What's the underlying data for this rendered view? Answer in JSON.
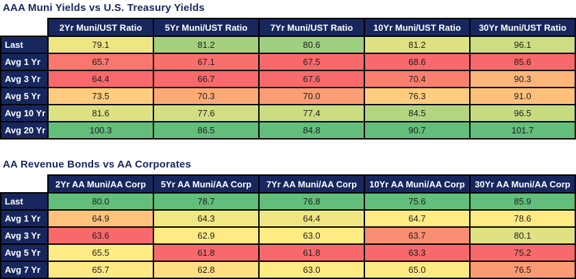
{
  "colors": {
    "page_bg": "#FFFFFF",
    "navy": "#17275E",
    "header_text": "#FFFFFF",
    "cell_text": "#1E1E1E",
    "border": "#000000",
    "title_text": "#17275E",
    "scale_min": "#F8696B",
    "scale_mid": "#FFEB84",
    "scale_max": "#63BE7B"
  },
  "chart_data": [
    {
      "type": "heatmap",
      "title": "AAA Muni Yields vs U.S. Treasury Yields",
      "columns": [
        "2Yr Muni/UST Ratio",
        "5Yr Muni/UST Ratio",
        "7Yr Muni/UST Ratio",
        "10Yr Muni/UST Ratio",
        "30Yr Muni/UST Ratio"
      ],
      "row_labels": [
        "Last",
        "Avg 1 Yr",
        "Avg 3 Yr",
        "Avg 5 Yr",
        "Avg 10 Yr",
        "Avg 20 Yr"
      ],
      "values": [
        [
          79.1,
          81.2,
          80.6,
          81.2,
          96.1
        ],
        [
          65.7,
          67.1,
          67.5,
          68.6,
          85.6
        ],
        [
          64.4,
          66.7,
          67.6,
          70.4,
          90.3
        ],
        [
          73.5,
          70.3,
          70.0,
          76.3,
          91.0
        ],
        [
          81.6,
          77.6,
          77.4,
          84.5,
          96.5
        ],
        [
          100.3,
          86.5,
          84.8,
          90.7,
          101.7
        ]
      ],
      "cell_colors": [
        [
          "#EDE683",
          "#A5D17F",
          "#9ECF7E",
          "#DFE282",
          "#CEDD81"
        ],
        [
          "#F9776E",
          "#F8706C",
          "#F8696B",
          "#F8696B",
          "#F8696B"
        ],
        [
          "#F8696B",
          "#F8696B",
          "#F86B6B",
          "#F9806F",
          "#FCB67A"
        ],
        [
          "#FDCC7E",
          "#FBAA77",
          "#FB9D75",
          "#FDCC7E",
          "#FDC17C"
        ],
        [
          "#DDE182",
          "#D2DE81",
          "#CBDC81",
          "#B4D580",
          "#C7DB81"
        ],
        [
          "#63BE7B",
          "#63BE7B",
          "#63BE7B",
          "#63BE7B",
          "#63BE7B"
        ]
      ],
      "value_format": "0.0",
      "color_scale": {
        "type": "3-color",
        "min_color": "#F8696B",
        "mid_color": "#FFEB84",
        "max_color": "#63BE7B",
        "note": "applied per column; midpoint at column median"
      },
      "legend_position": "none",
      "grid": true
    },
    {
      "type": "heatmap",
      "title": "AA Revenue Bonds vs AA Corporates",
      "columns": [
        "2Yr AA Muni/AA Corp",
        "5Yr AA Muni/AA Corp",
        "7Yr AA Muni/AA Corp",
        "10Yr AA Muni/AA Corp",
        "30Yr AA Muni/AA Corp"
      ],
      "row_labels": [
        "Last",
        "Avg 1 Yr",
        "Avg 3 Yr",
        "Avg 5 Yr",
        "Avg 7 Yr"
      ],
      "values": [
        [
          80.0,
          78.7,
          76.8,
          75.6,
          85.9
        ],
        [
          64.9,
          64.3,
          64.4,
          64.7,
          78.6
        ],
        [
          63.6,
          62.9,
          63.0,
          63.7,
          80.1
        ],
        [
          65.5,
          61.8,
          61.8,
          63.3,
          75.2
        ],
        [
          65.7,
          62.8,
          63.0,
          65.0,
          76.5
        ]
      ],
      "cell_colors": [
        [
          "#63BE7B",
          "#63BE7B",
          "#63BE7B",
          "#63BE7B",
          "#63BE7B"
        ],
        [
          "#FDC27C",
          "#F1E783",
          "#EFE683",
          "#FFEB84",
          "#FFEB84"
        ],
        [
          "#F8696B",
          "#FFEB84",
          "#FFEB84",
          "#FA8E72",
          "#DFE282"
        ],
        [
          "#FFEB84",
          "#F8696B",
          "#F8696B",
          "#F8696B",
          "#F8696B"
        ],
        [
          "#FDEA84",
          "#FEDF82",
          "#FFEB84",
          "#FBEA84",
          "#FB9B75"
        ]
      ],
      "value_format": "0.0",
      "color_scale": {
        "type": "3-color",
        "min_color": "#F8696B",
        "mid_color": "#FFEB84",
        "max_color": "#63BE7B",
        "note": "applied per column; midpoint at column median"
      },
      "legend_position": "none",
      "grid": true
    }
  ]
}
